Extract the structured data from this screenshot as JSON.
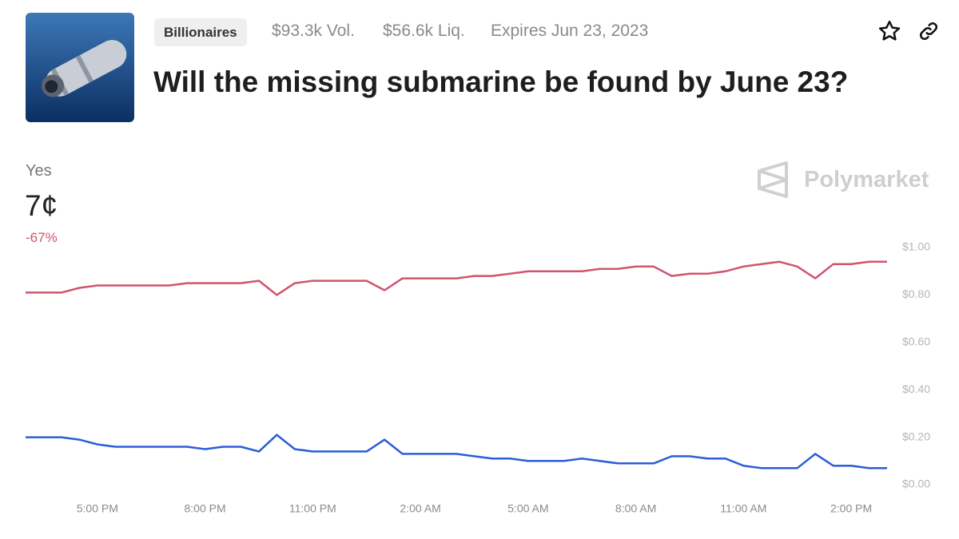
{
  "header": {
    "tag": "Billionaires",
    "volume": "$93.3k Vol.",
    "liquidity": "$56.6k Liq.",
    "expires": "Expires Jun 23, 2023",
    "title": "Will the missing submarine be found by June 23?"
  },
  "outcome": {
    "name": "Yes",
    "price": "7¢",
    "change": "-67%"
  },
  "brand": "Polymarket",
  "chart_data": {
    "type": "line",
    "categories": [
      null,
      null,
      null,
      null,
      "5:00 PM",
      null,
      null,
      null,
      null,
      null,
      "8:00 PM",
      null,
      null,
      null,
      null,
      null,
      "11:00 PM",
      null,
      null,
      null,
      null,
      null,
      "2:00 AM",
      null,
      null,
      null,
      null,
      null,
      "5:00 AM",
      null,
      null,
      null,
      null,
      null,
      "8:00 AM",
      null,
      null,
      null,
      null,
      null,
      "11:00 AM",
      null,
      null,
      null,
      null,
      null,
      "2:00 PM",
      null,
      null
    ],
    "series": [
      {
        "color": "#d1546e",
        "values": [
          0.81,
          0.81,
          0.81,
          0.83,
          0.84,
          0.84,
          0.84,
          0.84,
          0.84,
          0.85,
          0.85,
          0.85,
          0.85,
          0.86,
          0.8,
          0.85,
          0.86,
          0.86,
          0.86,
          0.86,
          0.82,
          0.87,
          0.87,
          0.87,
          0.87,
          0.88,
          0.88,
          0.89,
          0.9,
          0.9,
          0.9,
          0.9,
          0.91,
          0.91,
          0.92,
          0.92,
          0.88,
          0.89,
          0.89,
          0.9,
          0.92,
          0.93,
          0.94,
          0.92,
          0.87,
          0.93,
          0.93,
          0.94,
          0.94
        ]
      },
      {
        "color": "#2a5ed8",
        "values": [
          0.2,
          0.2,
          0.2,
          0.19,
          0.17,
          0.16,
          0.16,
          0.16,
          0.16,
          0.16,
          0.15,
          0.16,
          0.16,
          0.14,
          0.21,
          0.15,
          0.14,
          0.14,
          0.14,
          0.14,
          0.19,
          0.13,
          0.13,
          0.13,
          0.13,
          0.12,
          0.11,
          0.11,
          0.1,
          0.1,
          0.1,
          0.11,
          0.1,
          0.09,
          0.09,
          0.09,
          0.12,
          0.12,
          0.11,
          0.11,
          0.08,
          0.07,
          0.07,
          0.07,
          0.13,
          0.08,
          0.08,
          0.07,
          0.07
        ]
      }
    ],
    "ylim": [
      0,
      1
    ],
    "yticks": [
      {
        "value": 0,
        "label": "$0.00"
      },
      {
        "value": 0.2,
        "label": "$0.20"
      },
      {
        "value": 0.4,
        "label": "$0.40"
      },
      {
        "value": 0.6,
        "label": "$0.60"
      },
      {
        "value": 0.8,
        "label": "$0.80"
      },
      {
        "value": 1,
        "label": "$1.00"
      }
    ],
    "grid": false
  }
}
